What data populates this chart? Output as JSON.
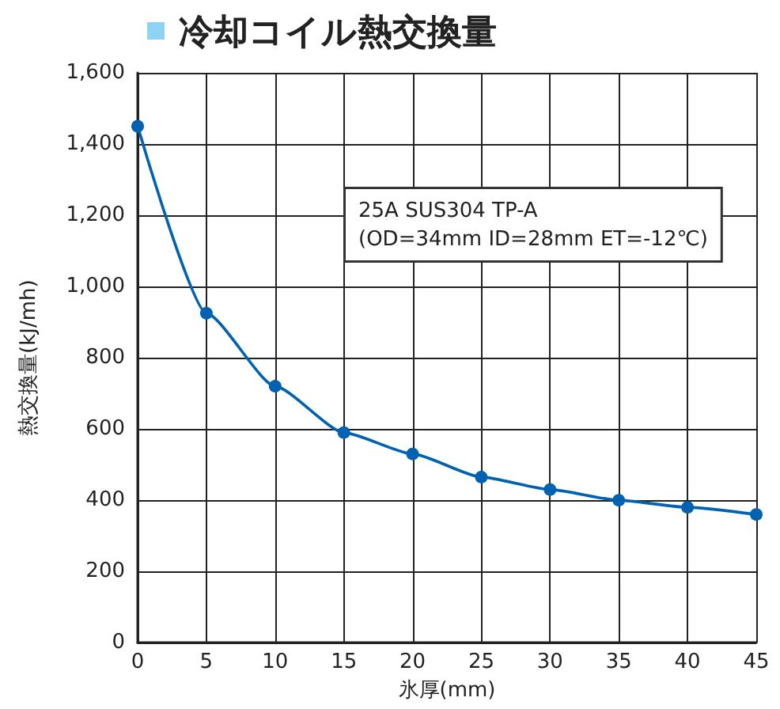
{
  "chart_data": {
    "type": "line",
    "title": "冷却コイル熱交換量",
    "xlabel": "氷厚(mm)",
    "ylabel": "熱交換量(kJ/mh)",
    "x": [
      0,
      5,
      10,
      15,
      20,
      25,
      30,
      35,
      40,
      45
    ],
    "series": [
      {
        "color": "#0062b1",
        "values": [
          1450,
          925,
          720,
          590,
          530,
          465,
          430,
          400,
          380,
          360
        ]
      }
    ],
    "xlim": [
      0,
      45
    ],
    "xticks": [
      0,
      5,
      10,
      15,
      20,
      25,
      30,
      35,
      40,
      45
    ],
    "ylim": [
      0,
      1600
    ],
    "yticks": [
      0,
      200,
      400,
      600,
      800,
      {
        "value": 1000,
        "label": "1,000"
      },
      {
        "value": 1200,
        "label": "1,200"
      },
      {
        "value": 1400,
        "label": "1,400"
      },
      {
        "value": 1600,
        "label": "1,600"
      }
    ],
    "grid": true,
    "marker": "circle",
    "line_style": "solid",
    "annotations": [
      "25A SUS304 TP-A\n(OD=34mm ID=28mm ET=-12℃)"
    ]
  }
}
